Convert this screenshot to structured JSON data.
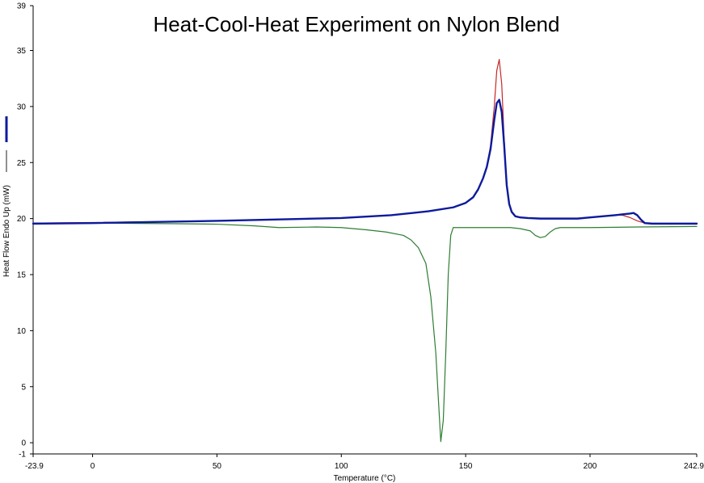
{
  "chart_data": {
    "type": "line",
    "title": "Heat-Cool-Heat Experiment on Nylon Blend",
    "xlabel": "Temperature (°C)",
    "ylabel": "Heat Flow Endo Up (mW)",
    "xlim": [
      -23.9,
      242.9
    ],
    "ylim": [
      -1,
      39
    ],
    "x_ticks": [
      -23.9,
      0,
      50,
      100,
      150,
      200,
      242.9
    ],
    "x_tick_labels": [
      "-23.9",
      "0",
      "50",
      "100",
      "150",
      "200",
      "242.9"
    ],
    "y_ticks": [
      -1,
      0,
      5,
      10,
      15,
      20,
      25,
      30,
      35,
      39
    ],
    "y_tick_labels": [
      "-1",
      "0",
      "5",
      "10",
      "15",
      "20",
      "25",
      "30",
      "35",
      "39"
    ],
    "grid": false,
    "legend": "left-vertical-strip",
    "series": [
      {
        "color": "#2e7d32",
        "x": [
          -23.9,
          0,
          30,
          50,
          65,
          75,
          90,
          100,
          110,
          118,
          125,
          128,
          131,
          134,
          136,
          138,
          139,
          140,
          141,
          142,
          143,
          144,
          145,
          147,
          150,
          160,
          168,
          172,
          176,
          178,
          180,
          182,
          184,
          186,
          188,
          200,
          220,
          242.9
        ],
        "y": [
          19.6,
          19.6,
          19.55,
          19.5,
          19.35,
          19.2,
          19.25,
          19.2,
          19.0,
          18.8,
          18.5,
          18.1,
          17.4,
          16.0,
          13.0,
          8.0,
          4.0,
          0.1,
          2.0,
          8.0,
          15.0,
          18.5,
          19.2,
          19.2,
          19.2,
          19.2,
          19.2,
          19.1,
          18.9,
          18.5,
          18.3,
          18.4,
          18.8,
          19.1,
          19.2,
          19.2,
          19.25,
          19.3
        ]
      },
      {
        "color": "#c62828",
        "x": [
          -23.9,
          0,
          50,
          80,
          100,
          120,
          135,
          145,
          150,
          153,
          155,
          157,
          158.5,
          160,
          161.5,
          162.5,
          163.5,
          164.5,
          165.5,
          166.5,
          167.5,
          168.5,
          170,
          172,
          175,
          180,
          195,
          200,
          205,
          210,
          213,
          216,
          219,
          222,
          225,
          230,
          242.9
        ],
        "y": [
          19.6,
          19.65,
          19.8,
          19.95,
          20.05,
          20.3,
          20.65,
          21.0,
          21.4,
          21.9,
          22.6,
          23.6,
          24.6,
          26.5,
          30.0,
          33.2,
          34.2,
          32.0,
          27.0,
          23.0,
          21.3,
          20.6,
          20.2,
          20.1,
          20.05,
          20.0,
          20.0,
          20.1,
          20.2,
          20.3,
          20.3,
          20.1,
          19.8,
          19.6,
          19.55,
          19.55,
          19.55
        ]
      },
      {
        "color": "#0d1a9c",
        "x": [
          -23.9,
          0,
          50,
          80,
          100,
          120,
          135,
          145,
          150,
          153,
          155,
          157,
          158.5,
          160,
          161.5,
          162.5,
          163.5,
          164.5,
          165.5,
          166.5,
          167.5,
          168.5,
          170,
          172,
          175,
          180,
          195,
          200,
          205,
          210,
          214,
          216,
          217.5,
          219,
          220.5,
          222,
          225,
          230,
          242.9
        ],
        "y": [
          19.55,
          19.6,
          19.8,
          19.95,
          20.05,
          20.3,
          20.65,
          21.0,
          21.4,
          21.9,
          22.6,
          23.6,
          24.6,
          26.2,
          28.8,
          30.3,
          30.6,
          29.5,
          26.5,
          23.0,
          21.3,
          20.6,
          20.2,
          20.1,
          20.05,
          20.0,
          20.0,
          20.1,
          20.2,
          20.3,
          20.4,
          20.45,
          20.5,
          20.3,
          19.9,
          19.6,
          19.55,
          19.55,
          19.55
        ]
      }
    ]
  }
}
